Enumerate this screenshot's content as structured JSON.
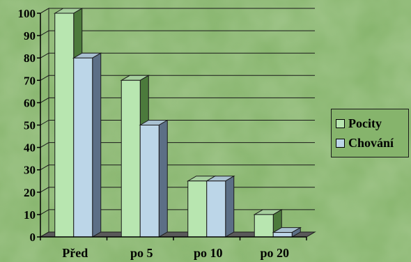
{
  "chart_data": {
    "type": "bar",
    "categories": [
      "Před",
      "po 5",
      "po 10",
      "po 20"
    ],
    "series": [
      {
        "name": "Pocity",
        "values": [
          100,
          70,
          25,
          10
        ],
        "color": "#b8e6b0"
      },
      {
        "name": "Chování",
        "values": [
          80,
          50,
          25,
          2
        ],
        "color": "#bcd6e8"
      }
    ],
    "ylim": [
      0,
      100
    ],
    "yticks": [
      0,
      10,
      20,
      30,
      40,
      50,
      60,
      70,
      80,
      90,
      100
    ],
    "grid": true,
    "legend_position": "right",
    "three_d": true,
    "background_color": "#86b46c"
  },
  "legend": {
    "items": [
      {
        "label": "Pocity",
        "color": "#b8e6b0"
      },
      {
        "label": "Chování",
        "color": "#bcd6e8"
      }
    ]
  }
}
